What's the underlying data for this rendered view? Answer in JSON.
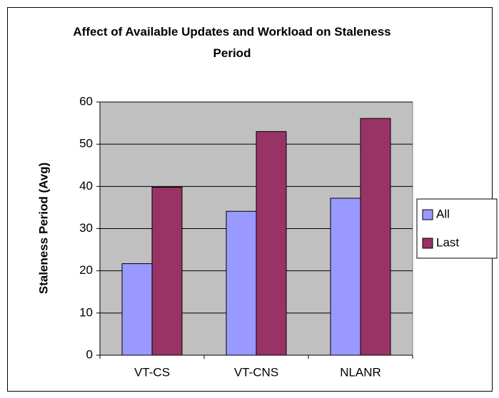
{
  "chart_data": {
    "type": "bar",
    "title": "Affect of Available Updates and Workload on Staleness Period",
    "y_label": "Staleness Period (Avg)",
    "categories": [
      "VT-CS",
      "VT-CNS",
      "NLANR"
    ],
    "series": [
      {
        "name": "All",
        "color": "#9999ff",
        "values": [
          21.7,
          34.1,
          37.2
        ]
      },
      {
        "name": "Last",
        "color": "#993366",
        "values": [
          39.8,
          53,
          56.1
        ]
      }
    ],
    "ylim": [
      0,
      60
    ],
    "yticks": [
      0,
      10,
      20,
      30,
      40,
      50,
      60
    ],
    "grid": true,
    "legend": "right"
  }
}
